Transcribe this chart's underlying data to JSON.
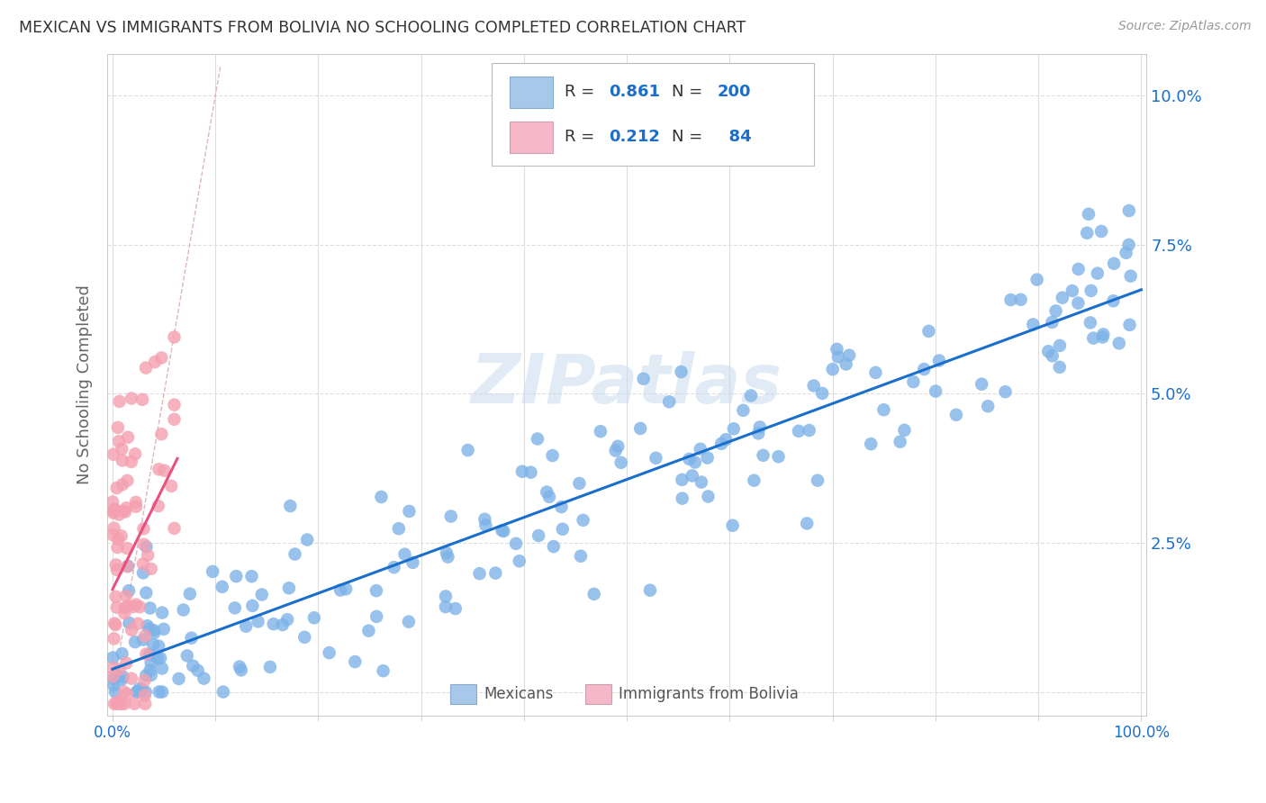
{
  "title": "MEXICAN VS IMMIGRANTS FROM BOLIVIA NO SCHOOLING COMPLETED CORRELATION CHART",
  "source": "Source: ZipAtlas.com",
  "ylabel": "No Schooling Completed",
  "mexican_color": "#7EB3E8",
  "bolivia_color": "#F4A0B0",
  "legend_blue_color": "#A8C8EA",
  "legend_pink_color": "#F4B8C8",
  "trend_blue": "#1A6FCC",
  "trend_pink": "#E85080",
  "diagonal_color": "#D8B0B8",
  "R_mexican": 0.861,
  "N_mexican": 200,
  "R_bolivia": 0.212,
  "N_bolivia": 84,
  "watermark": "ZIPatlas",
  "background_color": "#FFFFFF",
  "grid_color": "#DEDEDE",
  "title_color": "#333333",
  "axis_label_color": "#666666",
  "tick_color_blue": "#1A6FCC",
  "legend_text_color": "#1A6FCC",
  "legend_R_color": "#333333"
}
